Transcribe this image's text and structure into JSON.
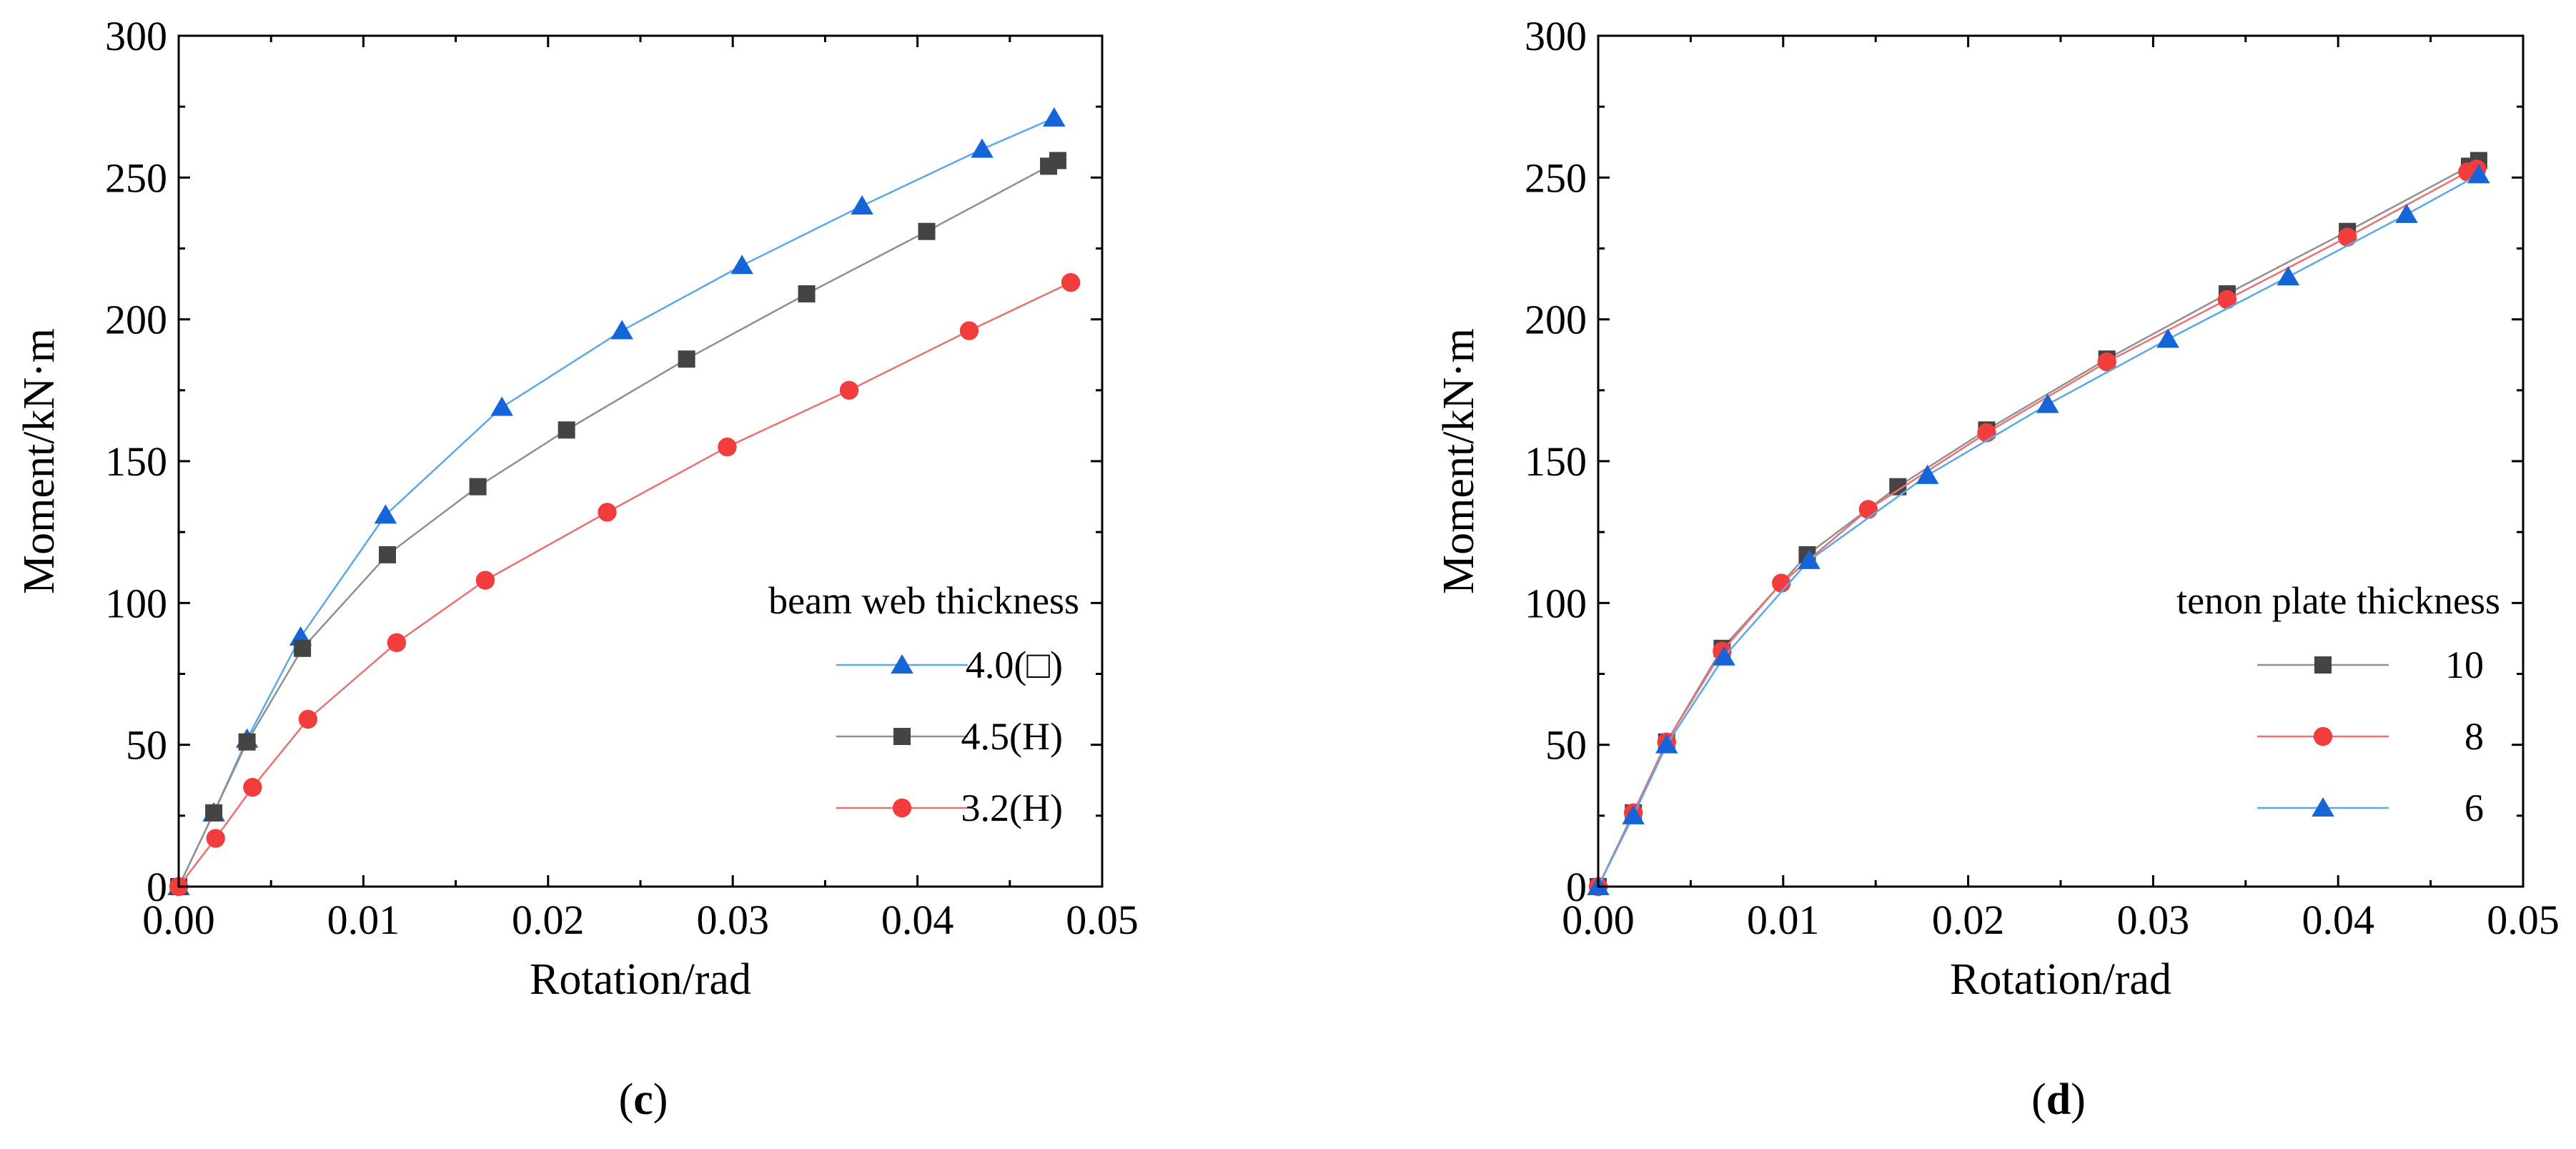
{
  "chart_data": [
    {
      "id": "c",
      "type": "line",
      "panel_label": {
        "open": "(",
        "letter": "c",
        "close": ")"
      },
      "xlabel": "Rotation/rad",
      "ylabel": "Moment/kN·m",
      "xlim": [
        0,
        0.05
      ],
      "ylim": [
        0,
        300
      ],
      "xticks": [
        0.0,
        0.01,
        0.02,
        0.03,
        0.04,
        0.05
      ],
      "xtick_labels": [
        "0.00",
        "0.01",
        "0.02",
        "0.03",
        "0.04",
        "0.05"
      ],
      "yticks": [
        0,
        50,
        100,
        150,
        200,
        250,
        300
      ],
      "ytick_labels": [
        "0",
        "50",
        "100",
        "150",
        "200",
        "250",
        "300"
      ],
      "legend_title": "beam web thickness",
      "legend_position": "bottom-right",
      "series": [
        {
          "name": "4.0(□)",
          "color": "#1565d8",
          "line_color": "#5aa8ee",
          "marker": "triangle",
          "x": [
            0,
            0.0019,
            0.0037,
            0.0066,
            0.0112,
            0.0175,
            0.024,
            0.0305,
            0.037,
            0.0435,
            0.0474
          ],
          "y": [
            0,
            26,
            52,
            88,
            131,
            169,
            196,
            219,
            240,
            260,
            271
          ]
        },
        {
          "name": "4.5(H)",
          "color": "#444444",
          "line_color": "#909090",
          "marker": "square",
          "x": [
            0,
            0.0019,
            0.0037,
            0.0067,
            0.0113,
            0.0162,
            0.021,
            0.0275,
            0.034,
            0.0405,
            0.0471,
            0.0476
          ],
          "y": [
            0,
            26,
            51,
            84,
            117,
            141,
            161,
            186,
            209,
            231,
            254,
            256
          ]
        },
        {
          "name": "3.2(H)",
          "color": "#f23d3d",
          "line_color": "#f07070",
          "marker": "circle",
          "x": [
            0,
            0.002,
            0.004,
            0.007,
            0.0118,
            0.0166,
            0.0232,
            0.0297,
            0.0363,
            0.0428,
            0.0483
          ],
          "y": [
            0,
            17,
            35,
            59,
            86,
            108,
            132,
            155,
            175,
            196,
            213
          ]
        }
      ]
    },
    {
      "id": "d",
      "type": "line",
      "panel_label": {
        "open": "(",
        "letter": "d",
        "close": ")"
      },
      "xlabel": "Rotation/rad",
      "ylabel": "Moment/kN·m",
      "xlim": [
        0,
        0.05
      ],
      "ylim": [
        0,
        300
      ],
      "xticks": [
        0.0,
        0.01,
        0.02,
        0.03,
        0.04,
        0.05
      ],
      "xtick_labels": [
        "0.00",
        "0.01",
        "0.02",
        "0.03",
        "0.04",
        "0.05"
      ],
      "yticks": [
        0,
        50,
        100,
        150,
        200,
        250,
        300
      ],
      "ytick_labels": [
        "0",
        "50",
        "100",
        "150",
        "200",
        "250",
        "300"
      ],
      "legend_title": "tenon plate thickness",
      "legend_position": "bottom-right",
      "series": [
        {
          "name": "10",
          "color": "#444444",
          "line_color": "#909090",
          "marker": "square",
          "x": [
            0,
            0.0019,
            0.0037,
            0.0067,
            0.0113,
            0.0162,
            0.021,
            0.0275,
            0.034,
            0.0405,
            0.0471,
            0.0476
          ],
          "y": [
            0,
            26,
            51,
            84,
            117,
            141,
            161,
            186,
            209,
            231,
            254,
            256
          ]
        },
        {
          "name": "8",
          "color": "#f23d3d",
          "line_color": "#f07070",
          "marker": "circle",
          "x": [
            0,
            0.0019,
            0.0037,
            0.0067,
            0.0099,
            0.0146,
            0.021,
            0.0275,
            0.034,
            0.0405,
            0.047,
            0.0475
          ],
          "y": [
            0,
            26,
            51,
            83,
            107,
            133,
            160,
            185,
            207,
            229,
            252,
            253
          ]
        },
        {
          "name": "6",
          "color": "#1565d8",
          "line_color": "#5aa8ee",
          "marker": "triangle",
          "x": [
            0,
            0.0019,
            0.0037,
            0.0068,
            0.0114,
            0.0178,
            0.0243,
            0.0308,
            0.0373,
            0.0437,
            0.0476
          ],
          "y": [
            0,
            25,
            50,
            81,
            115,
            145,
            170,
            193,
            215,
            237,
            251
          ]
        }
      ]
    }
  ]
}
